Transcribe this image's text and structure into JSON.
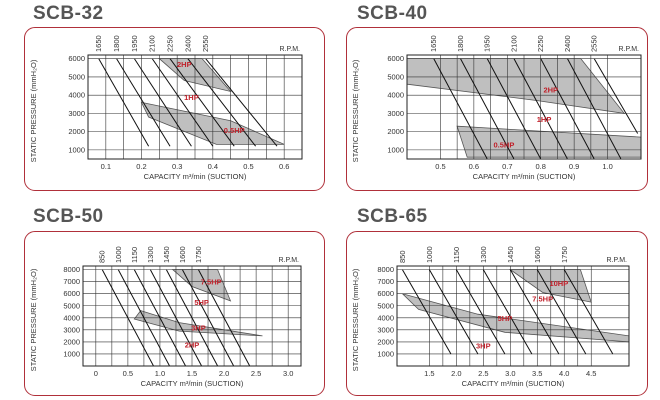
{
  "chart_data": [
    {
      "type": "line",
      "title": "SCB-32",
      "xlabel": "CAPACITY m³/min (SUCTION)",
      "ylabel": "STATIC PRESSURE (mmH₂O)",
      "rpm_label": "R.P.M.",
      "xlim": [
        0.05,
        0.65
      ],
      "ylim": [
        500,
        6200
      ],
      "x_ticks": [
        0.1,
        0.2,
        0.3,
        0.4,
        0.5,
        0.6
      ],
      "x_tick_labels": [
        "0.1",
        "0.2",
        "0.3",
        "0.4",
        "0.5",
        "0.6"
      ],
      "y_ticks": [
        1000,
        2000,
        3000,
        4000,
        5000,
        6000
      ],
      "y_tick_labels": [
        "1000",
        "2000",
        "3000",
        "4000",
        "5000",
        "6000"
      ],
      "grid": true,
      "rpm_lines": [
        {
          "label": "1650",
          "points": [
            [
              0.08,
              6000
            ],
            [
              0.22,
              1200
            ]
          ]
        },
        {
          "label": "1800",
          "points": [
            [
              0.13,
              6000
            ],
            [
              0.28,
              1200
            ]
          ]
        },
        {
          "label": "1950",
          "points": [
            [
              0.18,
              6000
            ],
            [
              0.34,
              1200
            ]
          ]
        },
        {
          "label": "2100",
          "points": [
            [
              0.23,
              6000
            ],
            [
              0.4,
              1200
            ]
          ]
        },
        {
          "label": "2250",
          "points": [
            [
              0.28,
              6000
            ],
            [
              0.46,
              1200
            ]
          ]
        },
        {
          "label": "2400",
          "points": [
            [
              0.33,
              6000
            ],
            [
              0.52,
              1200
            ]
          ]
        },
        {
          "label": "2550",
          "points": [
            [
              0.38,
              6000
            ],
            [
              0.58,
              1200
            ]
          ]
        }
      ],
      "power_regions": [
        {
          "label": "2HP",
          "label_at": [
            0.32,
            5700
          ],
          "points": [
            [
              0.25,
              6000
            ],
            [
              0.37,
              6000
            ],
            [
              0.45,
              4200
            ],
            [
              0.32,
              4800
            ]
          ]
        },
        {
          "label": "1HP",
          "label_at": [
            0.34,
            3900
          ],
          "points": []
        },
        {
          "label": "0.5HP",
          "label_at": [
            0.46,
            2100
          ],
          "points": [
            [
              0.2,
              3600
            ],
            [
              0.45,
              2600
            ],
            [
              0.6,
              1300
            ],
            [
              0.41,
              1300
            ],
            [
              0.22,
              2800
            ]
          ]
        }
      ]
    },
    {
      "type": "line",
      "title": "SCB-40",
      "xlabel": "CAPACITY m³/min (SUCTION)",
      "ylabel": "STATIC PRESSURE (mmH₂O)",
      "rpm_label": "R.P.M.",
      "xlim": [
        0.4,
        1.1
      ],
      "ylim": [
        500,
        6200
      ],
      "x_ticks": [
        0.5,
        0.6,
        0.7,
        0.8,
        0.9,
        1.0
      ],
      "x_tick_labels": [
        "0.5",
        "0.6",
        "0.7",
        "0.8",
        "0.9",
        "1.0"
      ],
      "y_ticks": [
        1000,
        2000,
        3000,
        4000,
        5000,
        6000
      ],
      "y_tick_labels": [
        "1000",
        "2000",
        "3000",
        "4000",
        "5000",
        "6000"
      ],
      "grid": true,
      "rpm_lines": [
        {
          "label": "1650",
          "points": [
            [
              0.48,
              6000
            ],
            [
              0.64,
              500
            ]
          ]
        },
        {
          "label": "1800",
          "points": [
            [
              0.56,
              6000
            ],
            [
              0.72,
              500
            ]
          ]
        },
        {
          "label": "1950",
          "points": [
            [
              0.64,
              6000
            ],
            [
              0.8,
              500
            ]
          ]
        },
        {
          "label": "2100",
          "points": [
            [
              0.72,
              6000
            ],
            [
              0.88,
              500
            ]
          ]
        },
        {
          "label": "2250",
          "points": [
            [
              0.8,
              6000
            ],
            [
              0.96,
              500
            ]
          ]
        },
        {
          "label": "2400",
          "points": [
            [
              0.88,
              6000
            ],
            [
              1.04,
              500
            ]
          ]
        },
        {
          "label": "2550",
          "points": [
            [
              0.96,
              6000
            ],
            [
              1.09,
              1900
            ]
          ]
        }
      ],
      "power_regions": [
        {
          "label": "2HP",
          "label_at": [
            0.83,
            4300
          ],
          "points": [
            [
              0.4,
              6000
            ],
            [
              0.92,
              6000
            ],
            [
              1.05,
              3000
            ],
            [
              0.79,
              3700
            ],
            [
              0.4,
              4600
            ]
          ]
        },
        {
          "label": "1HP",
          "label_at": [
            0.81,
            2700
          ],
          "points": []
        },
        {
          "label": "0.5HP",
          "label_at": [
            0.69,
            1300
          ],
          "points": [
            [
              0.55,
              2300
            ],
            [
              1.1,
              1700
            ],
            [
              1.1,
              600
            ],
            [
              0.58,
              600
            ]
          ]
        }
      ]
    },
    {
      "type": "line",
      "title": "SCB-50",
      "xlabel": "CAPACITY m³/min (SUCTION)",
      "ylabel": "STATIC PRESSURE (mmH₂O)",
      "rpm_label": "R.P.M.",
      "xlim": [
        -0.2,
        3.2
      ],
      "ylim": [
        0,
        8300
      ],
      "x_ticks": [
        0,
        0.5,
        1.0,
        1.5,
        2.0,
        2.5,
        3.0
      ],
      "x_tick_labels": [
        "0",
        "0.5",
        "1.0",
        "1.5",
        "2.0",
        "2.5",
        "3.0"
      ],
      "y_ticks": [
        1000,
        2000,
        3000,
        4000,
        5000,
        6000,
        7000,
        8000
      ],
      "y_tick_labels": [
        "1000",
        "2000",
        "3000",
        "4000",
        "5000",
        "6000",
        "7000",
        "8000"
      ],
      "grid": true,
      "rpm_lines": [
        {
          "label": "850",
          "points": [
            [
              0.1,
              8000
            ],
            [
              0.9,
              0
            ]
          ]
        },
        {
          "label": "1000",
          "points": [
            [
              0.35,
              8000
            ],
            [
              1.15,
              0
            ]
          ]
        },
        {
          "label": "1150",
          "points": [
            [
              0.6,
              8000
            ],
            [
              1.4,
              0
            ]
          ]
        },
        {
          "label": "1300",
          "points": [
            [
              0.85,
              8000
            ],
            [
              1.65,
              0
            ]
          ]
        },
        {
          "label": "1450",
          "points": [
            [
              1.1,
              8000
            ],
            [
              1.9,
              0
            ]
          ]
        },
        {
          "label": "1600",
          "points": [
            [
              1.35,
              8000
            ],
            [
              2.15,
              0
            ]
          ]
        },
        {
          "label": "1750",
          "points": [
            [
              1.6,
              8000
            ],
            [
              2.4,
              0
            ]
          ]
        }
      ],
      "power_regions": [
        {
          "label": "7.5HP",
          "label_at": [
            1.8,
            7000
          ],
          "points": [
            [
              1.2,
              8000
            ],
            [
              1.9,
              8000
            ],
            [
              2.1,
              5400
            ],
            [
              1.5,
              6600
            ]
          ]
        },
        {
          "label": "5HP",
          "label_at": [
            1.65,
            5300
          ],
          "points": []
        },
        {
          "label": "3HP",
          "label_at": [
            1.6,
            3200
          ],
          "points": [
            [
              0.7,
              4600
            ],
            [
              1.3,
              3600
            ],
            [
              2.6,
              2500
            ],
            [
              1.3,
              2900
            ],
            [
              0.6,
              3900
            ]
          ]
        },
        {
          "label": "2HP",
          "label_at": [
            1.5,
            1800
          ],
          "points": []
        }
      ]
    },
    {
      "type": "line",
      "title": "SCB-65",
      "xlabel": "CAPACITY m³/min (SUCTION)",
      "ylabel": "STATIC PRESSURE (mmH₂O)",
      "rpm_label": "R.P.M.",
      "xlim": [
        0.9,
        5.2
      ],
      "ylim": [
        0,
        8300
      ],
      "x_ticks": [
        1.5,
        2.0,
        2.5,
        3.0,
        3.5,
        4.0,
        4.5
      ],
      "x_tick_labels": [
        "1.5",
        "2.0",
        "2.5",
        "3.0",
        "3.5",
        "4.0",
        "4.5"
      ],
      "y_ticks": [
        1000,
        2000,
        3000,
        4000,
        5000,
        6000,
        7000,
        8000
      ],
      "y_tick_labels": [
        "1000",
        "2000",
        "3000",
        "4000",
        "5000",
        "6000",
        "7000",
        "8000"
      ],
      "grid": true,
      "rpm_lines": [
        {
          "label": "850",
          "points": [
            [
              1.0,
              8000
            ],
            [
              1.9,
              1000
            ]
          ]
        },
        {
          "label": "1000",
          "points": [
            [
              1.5,
              8000
            ],
            [
              2.4,
              1000
            ]
          ]
        },
        {
          "label": "1150",
          "points": [
            [
              2.0,
              8000
            ],
            [
              2.9,
              1000
            ]
          ]
        },
        {
          "label": "1300",
          "points": [
            [
              2.5,
              8000
            ],
            [
              3.4,
              1000
            ]
          ]
        },
        {
          "label": "1450",
          "points": [
            [
              3.0,
              8000
            ],
            [
              3.9,
              1000
            ]
          ]
        },
        {
          "label": "1600",
          "points": [
            [
              3.5,
              8000
            ],
            [
              4.4,
              1000
            ]
          ]
        },
        {
          "label": "1750",
          "points": [
            [
              4.0,
              8000
            ],
            [
              4.9,
              1000
            ]
          ]
        }
      ],
      "power_regions": [
        {
          "label": "10HP",
          "label_at": [
            3.9,
            6900
          ],
          "points": [
            [
              3.0,
              8000
            ],
            [
              4.3,
              8000
            ],
            [
              4.5,
              5300
            ],
            [
              3.6,
              6100
            ]
          ]
        },
        {
          "label": "7.5HP",
          "label_at": [
            3.6,
            5600
          ],
          "points": []
        },
        {
          "label": "5HP",
          "label_at": [
            2.9,
            4000
          ],
          "points": [
            [
              1.0,
              6000
            ],
            [
              2.4,
              4300
            ],
            [
              5.2,
              2500
            ],
            [
              5.2,
              2000
            ],
            [
              2.9,
              2800
            ],
            [
              1.3,
              4700
            ]
          ]
        },
        {
          "label": "3HP",
          "label_at": [
            2.5,
            1700
          ],
          "points": []
        }
      ]
    }
  ]
}
